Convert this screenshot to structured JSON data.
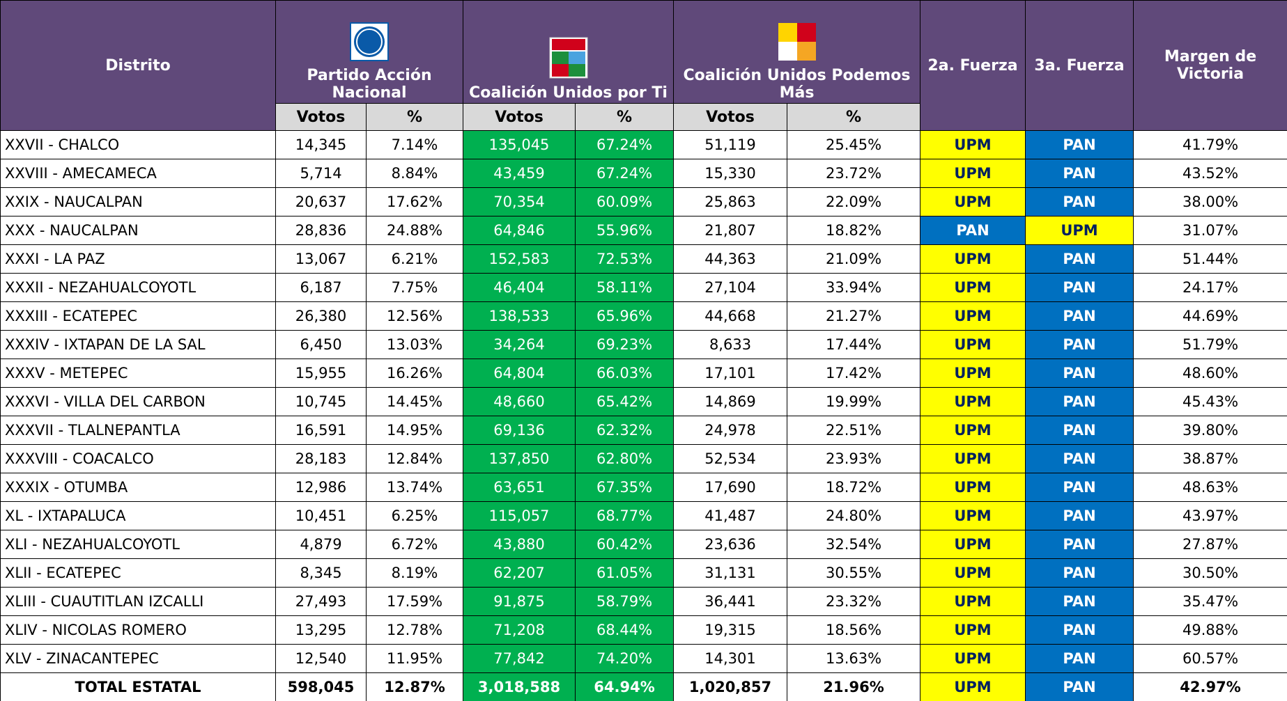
{
  "header": {
    "distrito": "Distrito",
    "parties": [
      {
        "name": "Partido Acción Nacional",
        "votos": "Votos",
        "pct": "%"
      },
      {
        "name": "Coalición Unidos por Ti",
        "votos": "Votos",
        "pct": "%"
      },
      {
        "name": "Coalición Unidos Podemos Más",
        "votos": "Votos",
        "pct": "%"
      }
    ],
    "fuerza2": "2a. Fuerza",
    "fuerza3": "3a. Fuerza",
    "margen": "Margen de Victoria"
  },
  "fuerza_colors": {
    "UPM": "#ffff00",
    "PAN": "#0070c0"
  },
  "table": {
    "rows": [
      [
        "XXVII - CHALCO",
        "14,345",
        "7.14%",
        "135,045",
        "67.24%",
        "51,119",
        "25.45%",
        "UPM",
        "PAN",
        "41.79%"
      ],
      [
        "XXVIII - AMECAMECA",
        "5,714",
        "8.84%",
        "43,459",
        "67.24%",
        "15,330",
        "23.72%",
        "UPM",
        "PAN",
        "43.52%"
      ],
      [
        "XXIX - NAUCALPAN",
        "20,637",
        "17.62%",
        "70,354",
        "60.09%",
        "25,863",
        "22.09%",
        "UPM",
        "PAN",
        "38.00%"
      ],
      [
        "XXX - NAUCALPAN",
        "28,836",
        "24.88%",
        "64,846",
        "55.96%",
        "21,807",
        "18.82%",
        "PAN",
        "UPM",
        "31.07%"
      ],
      [
        "XXXI - LA PAZ",
        "13,067",
        "6.21%",
        "152,583",
        "72.53%",
        "44,363",
        "21.09%",
        "UPM",
        "PAN",
        "51.44%"
      ],
      [
        "XXXII - NEZAHUALCOYOTL",
        "6,187",
        "7.75%",
        "46,404",
        "58.11%",
        "27,104",
        "33.94%",
        "UPM",
        "PAN",
        "24.17%"
      ],
      [
        "XXXIII - ECATEPEC",
        "26,380",
        "12.56%",
        "138,533",
        "65.96%",
        "44,668",
        "21.27%",
        "UPM",
        "PAN",
        "44.69%"
      ],
      [
        "XXXIV - IXTAPAN DE LA SAL",
        "6,450",
        "13.03%",
        "34,264",
        "69.23%",
        "8,633",
        "17.44%",
        "UPM",
        "PAN",
        "51.79%"
      ],
      [
        "XXXV - METEPEC",
        "15,955",
        "16.26%",
        "64,804",
        "66.03%",
        "17,101",
        "17.42%",
        "UPM",
        "PAN",
        "48.60%"
      ],
      [
        "XXXVI - VILLA DEL CARBON",
        "10,745",
        "14.45%",
        "48,660",
        "65.42%",
        "14,869",
        "19.99%",
        "UPM",
        "PAN",
        "45.43%"
      ],
      [
        "XXXVII - TLALNEPANTLA",
        "16,591",
        "14.95%",
        "69,136",
        "62.32%",
        "24,978",
        "22.51%",
        "UPM",
        "PAN",
        "39.80%"
      ],
      [
        "XXXVIII - COACALCO",
        "28,183",
        "12.84%",
        "137,850",
        "62.80%",
        "52,534",
        "23.93%",
        "UPM",
        "PAN",
        "38.87%"
      ],
      [
        "XXXIX - OTUMBA",
        "12,986",
        "13.74%",
        "63,651",
        "67.35%",
        "17,690",
        "18.72%",
        "UPM",
        "PAN",
        "48.63%"
      ],
      [
        "XL - IXTAPALUCA",
        "10,451",
        "6.25%",
        "115,057",
        "68.77%",
        "41,487",
        "24.80%",
        "UPM",
        "PAN",
        "43.97%"
      ],
      [
        "XLI - NEZAHUALCOYOTL",
        "4,879",
        "6.72%",
        "43,880",
        "60.42%",
        "23,636",
        "32.54%",
        "UPM",
        "PAN",
        "27.87%"
      ],
      [
        "XLII - ECATEPEC",
        "8,345",
        "8.19%",
        "62,207",
        "61.05%",
        "31,131",
        "30.55%",
        "UPM",
        "PAN",
        "30.50%"
      ],
      [
        "XLIII - CUAUTITLAN IZCALLI",
        "27,493",
        "17.59%",
        "91,875",
        "58.79%",
        "36,441",
        "23.32%",
        "UPM",
        "PAN",
        "35.47%"
      ],
      [
        "XLIV - NICOLAS ROMERO",
        "13,295",
        "12.78%",
        "71,208",
        "68.44%",
        "19,315",
        "18.56%",
        "UPM",
        "PAN",
        "49.88%"
      ],
      [
        "XLV - ZINACANTEPEC",
        "12,540",
        "11.95%",
        "77,842",
        "74.20%",
        "14,301",
        "13.63%",
        "UPM",
        "PAN",
        "60.57%"
      ]
    ],
    "total": [
      "TOTAL ESTATAL",
      "598,045",
      "12.87%",
      "3,018,588",
      "64.94%",
      "1,020,857",
      "21.96%",
      "UPM",
      "PAN",
      "42.97%"
    ]
  }
}
